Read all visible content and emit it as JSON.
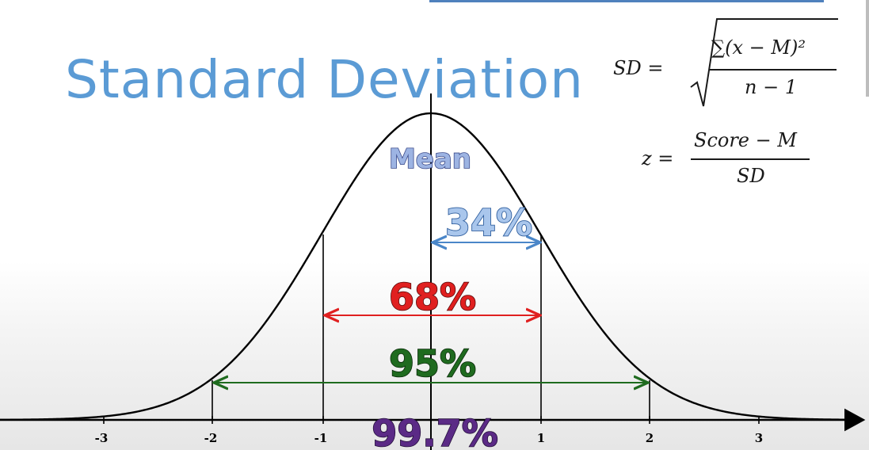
{
  "title": "Standard Deviation",
  "formula_sd": {
    "lhs": "SD =",
    "numerator": "∑(x − M)²",
    "denominator": "n − 1"
  },
  "formula_z": {
    "lhs": "z =",
    "numerator": "Score − M",
    "denominator": "SD"
  },
  "labels": {
    "mean": "Mean",
    "pct_34": "34%",
    "pct_68": "68%",
    "pct_95": "95%",
    "pct_997": "99.7%"
  },
  "axis_ticks": [
    "-3",
    "-2",
    "-1",
    "1",
    "2",
    "3"
  ],
  "colors": {
    "title": "#5b9bd5",
    "pct_34": "#4a86c8",
    "pct_68": "#e02020",
    "pct_95": "#1f6b1f",
    "pct_997": "#5b2a86",
    "mean": "#8faadc"
  }
}
